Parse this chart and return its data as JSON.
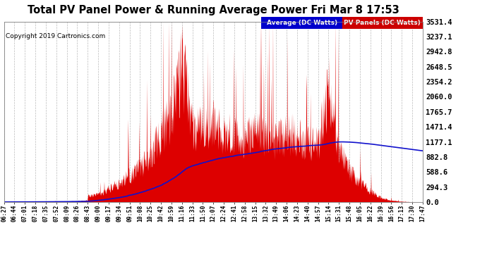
{
  "title": "Total PV Panel Power & Running Average Power Fri Mar 8 17:53",
  "copyright": "Copyright 2019 Cartronics.com",
  "ylabel_right_ticks": [
    0.0,
    294.3,
    588.6,
    882.8,
    1177.1,
    1471.4,
    1765.7,
    2060.0,
    2354.2,
    2648.5,
    2942.8,
    3237.1,
    3531.4
  ],
  "ylim": [
    0,
    3531.4
  ],
  "legend_avg_label": "Average (DC Watts)",
  "legend_pv_label": "PV Panels (DC Watts)",
  "legend_avg_color": "#0000cc",
  "legend_pv_color": "#cc0000",
  "bg_color": "#ffffff",
  "plot_bg_color": "#ffffff",
  "grid_color": "#aaaaaa",
  "title_color": "#000000",
  "x_ticks": [
    "06:27",
    "06:44",
    "07:01",
    "07:18",
    "07:35",
    "07:52",
    "08:09",
    "08:26",
    "08:43",
    "09:00",
    "09:17",
    "09:34",
    "09:51",
    "10:08",
    "10:25",
    "10:42",
    "10:59",
    "11:16",
    "11:33",
    "11:50",
    "12:07",
    "12:24",
    "12:41",
    "12:58",
    "13:15",
    "13:32",
    "13:49",
    "14:06",
    "14:23",
    "14:40",
    "14:57",
    "15:14",
    "15:31",
    "15:48",
    "16:05",
    "16:22",
    "16:39",
    "16:56",
    "17:13",
    "17:30",
    "17:47"
  ],
  "pv_peak": 3531.4,
  "avg_peak": 1200.0
}
